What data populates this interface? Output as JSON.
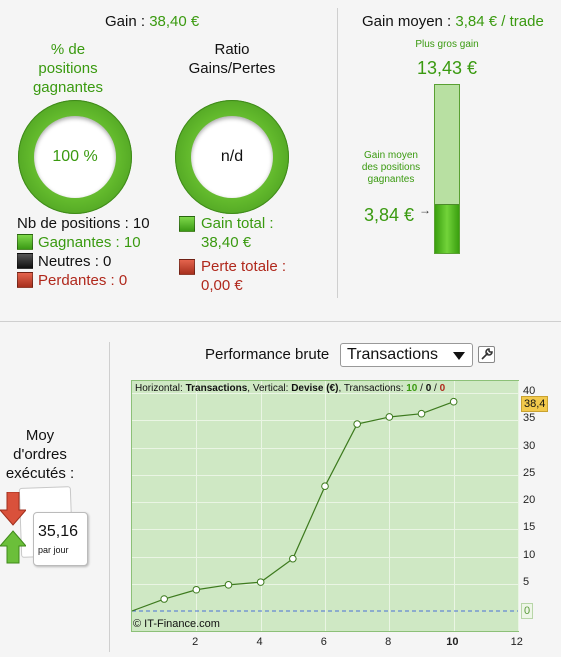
{
  "summary": {
    "gain_label": "Gain : ",
    "gain_value": "38,40 €",
    "win_pct_title": "% de positions gagnantes",
    "win_pct_value": "100 %",
    "ratio_title": "Ratio Gains/Pertes",
    "ratio_value": "n/d",
    "positions_count_label": "Nb de positions : 10",
    "legend": {
      "winners": "Gagnantes : 10",
      "neutral": "Neutres : 0",
      "losers": "Perdantes : 0",
      "total_gain_label": "Gain total :",
      "total_gain_value": "38,40 €",
      "total_loss_label": "Perte totale :",
      "total_loss_value": "0,00 €"
    }
  },
  "average": {
    "title_label": "Gain moyen : ",
    "title_value": "3,84 € / trade",
    "max_gain_label": "Plus gros gain",
    "max_gain_value": "13,43 €",
    "avg_win_label": "Gain moyen des positions gagnantes",
    "avg_win_value": "3,84 €",
    "gauge_fraction": 0.286
  },
  "orders": {
    "title": "Moy d'ordres exécutés :",
    "value": "35,16",
    "unit": "par jour"
  },
  "performance": {
    "title": "Performance brute",
    "select_value": "Transactions",
    "header_prefix": "Horizontal: ",
    "header_h": "Transactions",
    "header_mid": ", Vertical: ",
    "header_v": "Devise (€)",
    "header_suffix": ", Transactions: ",
    "header_win": "10",
    "header_sep1": " / ",
    "header_neutral": "0",
    "header_sep2": " / ",
    "header_loss": "0",
    "credit": "© IT-Finance.com",
    "last_value_tag": "38,4",
    "zero_tag": "0"
  },
  "colors": {
    "green": "#3a9a10",
    "red": "#b0281c",
    "chart_bg": "#cfe8c4",
    "line": "#3d7a1e",
    "tag_highlight": "#f2c94c"
  },
  "chart_data": {
    "type": "line",
    "x": [
      0,
      1,
      2,
      3,
      4,
      5,
      6,
      7,
      8,
      9,
      10
    ],
    "series": [
      {
        "values": [
          0,
          2.2,
          3.9,
          4.8,
          5.3,
          9.6,
          22.9,
          34.3,
          35.6,
          36.2,
          38.4
        ]
      }
    ],
    "xlim": [
      0,
      12
    ],
    "ylim": [
      0,
      40
    ],
    "xticks": [
      "2",
      "4",
      "6",
      "8",
      "10",
      "12"
    ],
    "yticks": [
      "5",
      "10",
      "15",
      "20",
      "25",
      "30",
      "35",
      "40"
    ],
    "xlabel": "",
    "ylabel": "",
    "grid": true
  }
}
